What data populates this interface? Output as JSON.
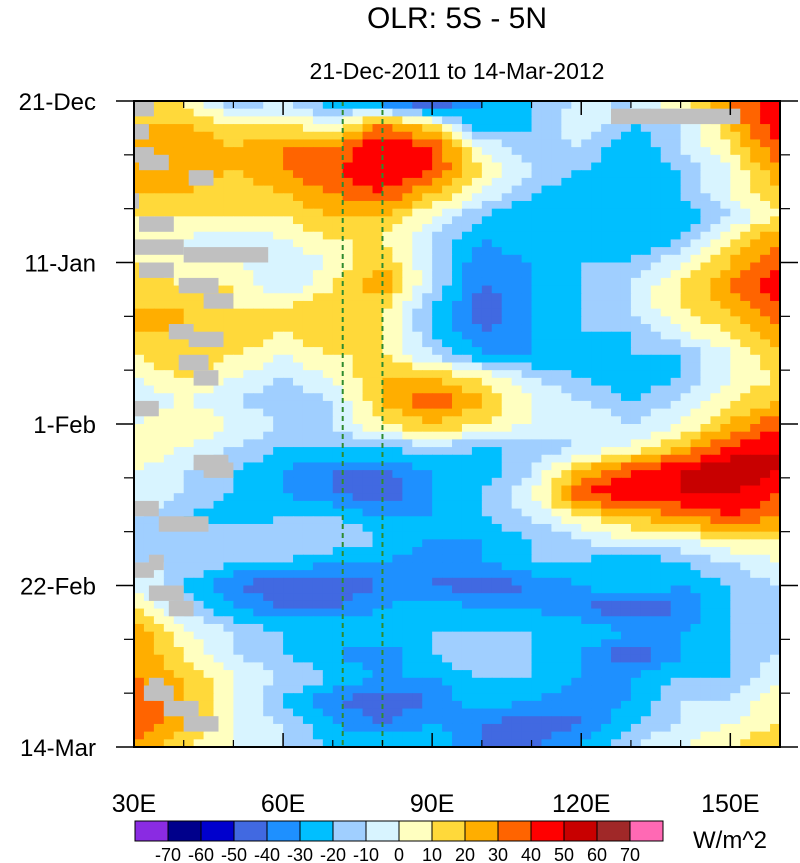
{
  "chart_data": {
    "type": "heatmap",
    "title": "OLR: 5S - 5N",
    "subtitle": "21-Dec-2011 to 14-Mar-2012",
    "x_axis": {
      "range": [
        30,
        160
      ],
      "ticks": [
        30,
        60,
        90,
        120,
        150
      ],
      "tick_labels": [
        "30E",
        "60E",
        "90E",
        "120E",
        "150E"
      ],
      "minor_ticks": [
        40,
        50,
        70,
        80,
        100,
        110,
        130,
        140
      ]
    },
    "y_axis": {
      "range_days": [
        0,
        84
      ],
      "inverted": true,
      "ticks_days": [
        0,
        21,
        42,
        63,
        84
      ],
      "tick_labels": [
        "21-Dec",
        "11-Jan",
        "1-Feb",
        "22-Feb",
        "14-Mar"
      ],
      "minor_ticks_days": [
        7,
        14,
        28,
        35,
        49,
        56,
        70,
        77
      ]
    },
    "reference_lines": [
      {
        "x": 72,
        "style": "dashed",
        "color": "#2e8b2e"
      },
      {
        "x": 80,
        "style": "dashed",
        "color": "#2e8b2e"
      }
    ],
    "colorbar": {
      "units": "W/m^2",
      "levels": [
        -70,
        -60,
        -50,
        -40,
        -30,
        -20,
        -10,
        0,
        10,
        20,
        30,
        40,
        50,
        60,
        70
      ],
      "level_labels": [
        "-70",
        "-60",
        "-50",
        "-40",
        "-30",
        "-20",
        "-10",
        "0",
        "10",
        "20",
        "30",
        "40",
        "50",
        "60",
        "70"
      ],
      "colors": [
        "#8a2be2",
        "#00008b",
        "#0000cd",
        "#4169e1",
        "#1e90ff",
        "#00bfff",
        "#a0cfff",
        "#d8f4ff",
        "#ffffc0",
        "#ffd93a",
        "#ffae00",
        "#ff6400",
        "#ff0000",
        "#c80000",
        "#a02828",
        "#ff69b4"
      ]
    },
    "missing_color": "#c0c0c0",
    "field": {
      "time_step_days": 3,
      "lon_start": 30,
      "lon_step": 10,
      "lons": [
        30,
        40,
        50,
        60,
        70,
        80,
        90,
        100,
        110,
        120,
        130,
        140,
        150,
        160
      ],
      "description_note": "approximate OLR anomaly values (W/m^2) read from the filled contours, rows every 3 days from 21-Dec",
      "values": [
        [
          10,
          10,
          -20,
          -10,
          -30,
          -40,
          -60,
          -30,
          -20,
          -10,
          -10,
          10,
          30,
          50
        ],
        [
          20,
          20,
          10,
          10,
          0,
          30,
          10,
          -30,
          -20,
          0,
          -20,
          -10,
          20,
          50
        ],
        [
          30,
          30,
          20,
          30,
          30,
          50,
          40,
          0,
          -20,
          -10,
          -30,
          -10,
          10,
          40
        ],
        [
          20,
          30,
          20,
          30,
          40,
          50,
          40,
          10,
          -10,
          -20,
          -30,
          -20,
          0,
          30
        ],
        [
          20,
          20,
          10,
          20,
          30,
          40,
          20,
          0,
          -20,
          -30,
          -20,
          -20,
          0,
          20
        ],
        [
          10,
          10,
          10,
          10,
          20,
          20,
          0,
          -20,
          -30,
          -30,
          -20,
          -30,
          -10,
          10
        ],
        [
          10,
          0,
          -10,
          0,
          10,
          10,
          -10,
          -30,
          -20,
          -20,
          -30,
          -20,
          10,
          30
        ],
        [
          10,
          0,
          0,
          -10,
          0,
          20,
          -10,
          -40,
          -30,
          -20,
          -20,
          0,
          20,
          40
        ],
        [
          20,
          10,
          10,
          -10,
          10,
          30,
          -10,
          -40,
          -30,
          -20,
          -10,
          10,
          30,
          50
        ],
        [
          20,
          20,
          10,
          10,
          20,
          10,
          -20,
          -50,
          -30,
          -20,
          -10,
          10,
          20,
          40
        ],
        [
          20,
          20,
          20,
          10,
          20,
          10,
          -20,
          -40,
          -30,
          -20,
          -20,
          0,
          10,
          30
        ],
        [
          10,
          20,
          10,
          0,
          10,
          10,
          -10,
          -30,
          -30,
          -30,
          -20,
          -20,
          0,
          20
        ],
        [
          0,
          10,
          0,
          -10,
          0,
          20,
          20,
          10,
          -10,
          -20,
          -30,
          -20,
          0,
          10
        ],
        [
          -10,
          0,
          -10,
          -20,
          -10,
          20,
          40,
          20,
          0,
          -10,
          -20,
          -10,
          10,
          20
        ],
        [
          0,
          10,
          0,
          -10,
          -10,
          10,
          20,
          10,
          0,
          0,
          -10,
          0,
          20,
          40
        ],
        [
          10,
          0,
          -10,
          -20,
          -20,
          -20,
          -10,
          -20,
          -20,
          -10,
          0,
          20,
          40,
          50
        ],
        [
          0,
          -10,
          -20,
          -30,
          -40,
          -40,
          -30,
          -30,
          -10,
          20,
          40,
          50,
          60,
          50
        ],
        [
          0,
          -10,
          -20,
          -30,
          -40,
          -50,
          -30,
          -20,
          0,
          40,
          50,
          50,
          50,
          40
        ],
        [
          -10,
          -20,
          -30,
          -20,
          -20,
          -30,
          -30,
          -20,
          -10,
          10,
          20,
          30,
          40,
          30
        ],
        [
          -20,
          -20,
          -10,
          -10,
          -10,
          -20,
          -30,
          -30,
          -20,
          -10,
          0,
          0,
          10,
          10
        ],
        [
          -10,
          -10,
          -20,
          -20,
          -30,
          -30,
          -40,
          -30,
          -20,
          -20,
          -30,
          -20,
          -10,
          0
        ],
        [
          0,
          -20,
          -40,
          -50,
          -50,
          -40,
          -40,
          -50,
          -40,
          -30,
          -20,
          -30,
          -20,
          -10
        ],
        [
          10,
          -10,
          -30,
          -40,
          -40,
          -30,
          -20,
          -30,
          -30,
          -40,
          -50,
          -40,
          -20,
          -10
        ],
        [
          30,
          0,
          -10,
          -20,
          -20,
          -20,
          -20,
          -20,
          -20,
          -20,
          -30,
          -30,
          -20,
          -10
        ],
        [
          30,
          10,
          -10,
          -20,
          -30,
          -40,
          -20,
          -10,
          -20,
          -30,
          -50,
          -30,
          -20,
          -10
        ],
        [
          30,
          20,
          0,
          -10,
          -20,
          -30,
          -30,
          -20,
          -20,
          -30,
          -30,
          -20,
          -20,
          0
        ],
        [
          40,
          20,
          0,
          -20,
          -40,
          -50,
          -40,
          -20,
          -30,
          -40,
          -30,
          -10,
          -10,
          10
        ],
        [
          40,
          20,
          0,
          -10,
          -30,
          -40,
          -30,
          -40,
          -50,
          -40,
          -20,
          -10,
          0,
          10
        ],
        [
          30,
          10,
          0,
          -10,
          -20,
          -20,
          -20,
          -40,
          -40,
          -30,
          -10,
          0,
          10,
          20
        ]
      ]
    },
    "missing_segments_days_lon": [
      [
        0,
        30,
        34
      ],
      [
        3,
        30,
        33
      ],
      [
        12,
        30,
        31
      ],
      [
        15,
        31,
        38
      ],
      [
        6,
        30,
        34
      ],
      [
        7,
        31,
        37
      ],
      [
        9,
        41,
        46
      ],
      [
        18,
        29,
        40
      ],
      [
        19,
        40,
        57
      ],
      [
        21,
        31,
        38
      ],
      [
        23,
        39,
        47
      ],
      [
        25,
        44,
        50
      ],
      [
        29,
        37,
        42
      ],
      [
        30,
        41,
        48
      ],
      [
        33,
        39,
        45
      ],
      [
        35,
        42,
        47
      ],
      [
        39,
        30,
        35
      ],
      [
        46,
        42,
        49
      ],
      [
        47,
        44,
        50
      ],
      [
        52,
        30,
        35
      ],
      [
        54,
        35,
        45
      ],
      [
        59,
        33,
        36
      ],
      [
        60,
        30,
        34
      ],
      [
        63,
        33,
        40
      ],
      [
        65,
        37,
        42
      ],
      [
        75,
        33,
        36
      ],
      [
        76,
        32,
        38
      ],
      [
        78,
        36,
        43
      ],
      [
        80,
        40,
        47
      ],
      [
        1,
        126,
        152
      ]
    ]
  }
}
